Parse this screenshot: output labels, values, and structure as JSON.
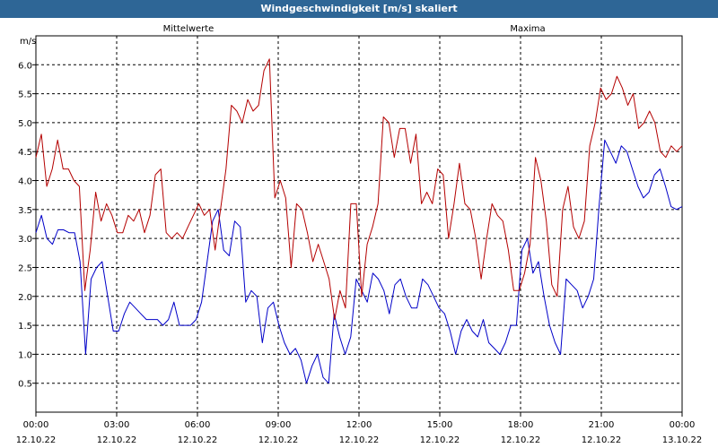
{
  "window": {
    "title": "Windgeschwindigkeit [m/s] skaliert"
  },
  "chart_data": {
    "type": "line",
    "title": "Windgeschwindigkeit [m/s] skaliert",
    "ylabel": "m/s",
    "ylim": [
      0,
      6.5
    ],
    "xlim": [
      0,
      24
    ],
    "grid": true,
    "y_ticks": [
      "0.5",
      "1.0",
      "1.5",
      "2.0",
      "2.5",
      "3.0",
      "3.5",
      "4.0",
      "4.5",
      "5.0",
      "5.5",
      "6.0"
    ],
    "x_ticks": [
      {
        "time": "00:00",
        "date": "12.10.22"
      },
      {
        "time": "03:00",
        "date": "12.10.22"
      },
      {
        "time": "06:00",
        "date": "12.10.22"
      },
      {
        "time": "09:00",
        "date": "12.10.22"
      },
      {
        "time": "12:00",
        "date": "12.10.22"
      },
      {
        "time": "15:00",
        "date": "12.10.22"
      },
      {
        "time": "18:00",
        "date": "12.10.22"
      },
      {
        "time": "21:00",
        "date": "12.10.22"
      },
      {
        "time": "00:00",
        "date": "13.10.22"
      }
    ],
    "series": [
      {
        "name": "Mittelwerte",
        "color": "#0000c8",
        "values": [
          3.1,
          3.4,
          3.0,
          2.9,
          3.15,
          3.15,
          3.1,
          3.1,
          2.6,
          1.0,
          2.3,
          2.5,
          2.6,
          2.0,
          1.4,
          1.4,
          1.7,
          1.9,
          1.8,
          1.7,
          1.6,
          1.6,
          1.6,
          1.5,
          1.6,
          1.9,
          1.5,
          1.5,
          1.5,
          1.6,
          1.9,
          2.6,
          3.3,
          3.5,
          2.8,
          2.7,
          3.3,
          3.2,
          1.9,
          2.1,
          2.0,
          1.2,
          1.8,
          1.9,
          1.5,
          1.2,
          1.0,
          1.1,
          0.9,
          0.5,
          0.8,
          1.0,
          0.6,
          0.5,
          1.7,
          1.3,
          1.0,
          1.3,
          2.3,
          2.1,
          1.9,
          2.4,
          2.3,
          2.1,
          1.7,
          2.2,
          2.3,
          2.0,
          1.8,
          1.8,
          2.3,
          2.2,
          2.0,
          1.8,
          1.7,
          1.4,
          1.0,
          1.4,
          1.6,
          1.4,
          1.3,
          1.6,
          1.2,
          1.1,
          1.0,
          1.2,
          1.5,
          1.5,
          2.8,
          3.0,
          2.4,
          2.6,
          2.0,
          1.5,
          1.2,
          1.0,
          2.3,
          2.2,
          2.1,
          1.8,
          2.0,
          2.3,
          3.6,
          4.7,
          4.5,
          4.3,
          4.6,
          4.5,
          4.2,
          3.9,
          3.7,
          3.8,
          4.1,
          4.2,
          3.9,
          3.55,
          3.5,
          3.55
        ]
      },
      {
        "name": "Maxima",
        "color": "#b40000",
        "values": [
          4.4,
          4.8,
          3.9,
          4.2,
          4.7,
          4.2,
          4.2,
          4.0,
          3.9,
          2.1,
          2.8,
          3.8,
          3.3,
          3.6,
          3.4,
          3.1,
          3.1,
          3.4,
          3.3,
          3.5,
          3.1,
          3.4,
          4.1,
          4.2,
          3.1,
          3.0,
          3.1,
          3.0,
          3.2,
          3.4,
          3.6,
          3.4,
          3.5,
          2.8,
          3.5,
          4.2,
          5.3,
          5.2,
          5.0,
          5.4,
          5.2,
          5.3,
          5.9,
          6.1,
          3.7,
          4.0,
          3.7,
          2.5,
          3.6,
          3.5,
          3.1,
          2.6,
          2.9,
          2.6,
          2.3,
          1.6,
          2.1,
          1.8,
          3.6,
          3.6,
          2.0,
          2.9,
          3.2,
          3.6,
          5.1,
          5.0,
          4.4,
          4.9,
          4.9,
          4.3,
          4.8,
          3.6,
          3.8,
          3.6,
          4.2,
          4.1,
          3.0,
          3.6,
          4.3,
          3.6,
          3.5,
          3.0,
          2.3,
          3.0,
          3.6,
          3.4,
          3.3,
          2.8,
          2.1,
          2.1,
          2.4,
          2.9,
          4.4,
          4.0,
          3.3,
          2.2,
          2.0,
          3.5,
          3.9,
          3.2,
          3.0,
          3.3,
          4.6,
          5.0,
          5.6,
          5.4,
          5.5,
          5.8,
          5.6,
          5.3,
          5.5,
          4.9,
          5.0,
          5.2,
          5.0,
          4.5,
          4.4,
          4.6,
          4.5,
          4.6
        ]
      }
    ]
  }
}
